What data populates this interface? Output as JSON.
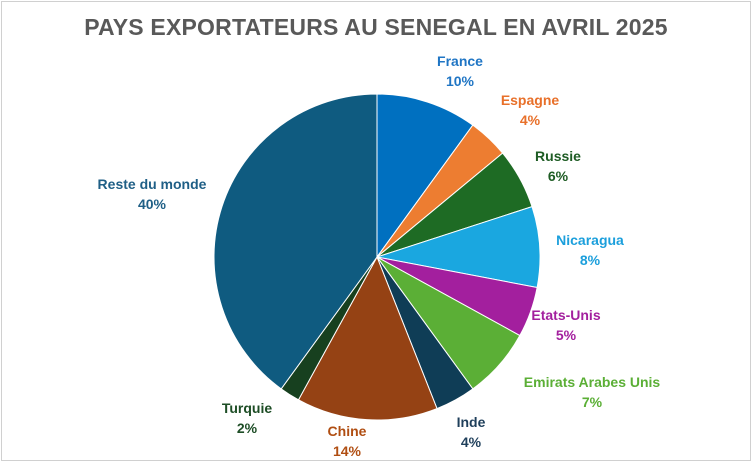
{
  "chart_data": {
    "type": "pie",
    "title": "PAYS EXPORTATEURS AU SENEGAL EN AVRIL 2025",
    "slices": [
      {
        "label": "France",
        "value": 10,
        "value_label": "10%",
        "color": "#0070C0"
      },
      {
        "label": "Espagne",
        "value": 4,
        "value_label": "4%",
        "color": "#ED7D31"
      },
      {
        "label": "Russie",
        "value": 6,
        "value_label": "6%",
        "color": "#1E6B24"
      },
      {
        "label": "Nicaragua",
        "value": 8,
        "value_label": "8%",
        "color": "#1AA7E0"
      },
      {
        "label": "Etats-Unis",
        "value": 5,
        "value_label": "5%",
        "color": "#A31F9E"
      },
      {
        "label": "Emirats Arabes Unis",
        "value": 7,
        "value_label": "7%",
        "color": "#5BAF36"
      },
      {
        "label": "Inde",
        "value": 4,
        "value_label": "4%",
        "color": "#0F3D56"
      },
      {
        "label": "Chine",
        "value": 14,
        "value_label": "14%",
        "color": "#954214"
      },
      {
        "label": "Turquie",
        "value": 2,
        "value_label": "2%",
        "color": "#17401F"
      },
      {
        "label": "Reste du monde",
        "value": 40,
        "value_label": "40%",
        "color": "#0F5B80"
      }
    ],
    "label_colors": [
      "#1F75C4",
      "#E8702A",
      "#1E5C24",
      "#1B9FDC",
      "#A31F9E",
      "#5BAF36",
      "#1F3F5B",
      "#B04E12",
      "#1D4D25",
      "#1F5F86"
    ]
  }
}
